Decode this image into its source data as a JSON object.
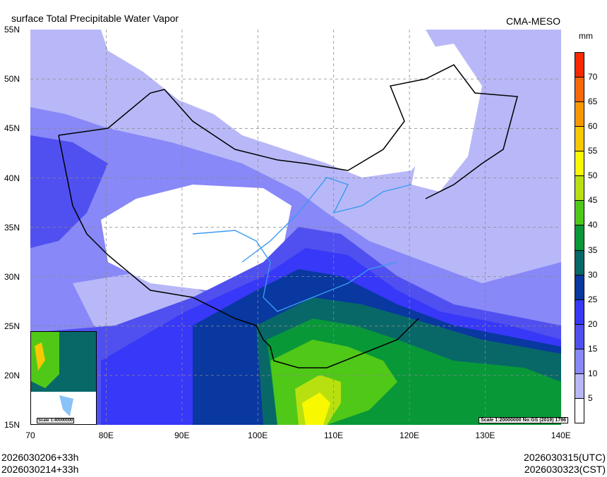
{
  "title": "surface Total Precipitable Water Vapor",
  "model": "CMA-MESO",
  "unit": "mm",
  "x_ticks": [
    "70",
    "80E",
    "90E",
    "100E",
    "110E",
    "120E",
    "130E",
    "140E"
  ],
  "y_ticks": [
    "15N",
    "20N",
    "25N",
    "30N",
    "35N",
    "40N",
    "45N",
    "50N",
    "55N"
  ],
  "colorbar": {
    "labels": [
      "5",
      "10",
      "15",
      "20",
      "25",
      "30",
      "35",
      "40",
      "45",
      "50",
      "55",
      "60",
      "65",
      "70"
    ],
    "colors": [
      "#ffffff",
      "#b8b8f8",
      "#8888f8",
      "#5050f0",
      "#3838f8",
      "#0838a0",
      "#086868",
      "#089838",
      "#50c818",
      "#b8e010",
      "#f8f800",
      "#f8c800",
      "#f89800",
      "#f86808",
      "#f82800"
    ]
  },
  "scale_main": "Scale 1:20000000 No:GS (2019) 1786",
  "scale_inset": "Scale 1:40000000",
  "footer": {
    "init_utc": "2026030206+33h",
    "init_cst": "2026030214+33h",
    "valid_utc": "2026030315(UTC)",
    "valid_cst": "2026030323(CST)"
  }
}
